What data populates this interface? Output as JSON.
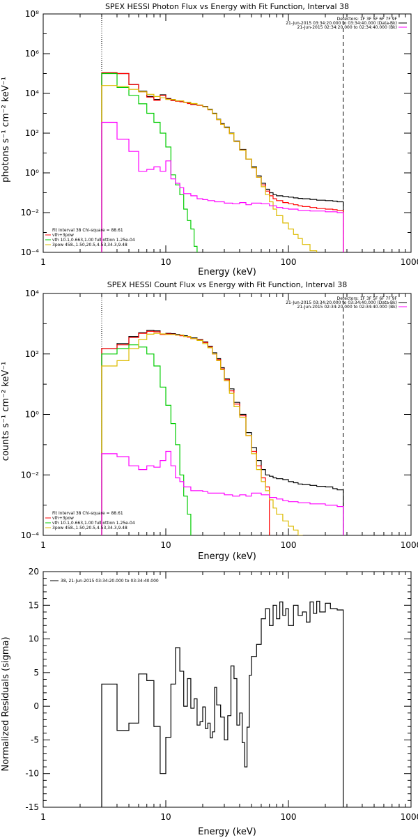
{
  "chart_data": [
    {
      "type": "line",
      "title": "SPEX HESSI Photon Flux vs Energy with Fit Function, Interval 38",
      "xlabel": "Energy (keV)",
      "ylabel": "photons s⁻¹ cm⁻² keV⁻¹",
      "xscale": "log",
      "yscale": "log",
      "xlim": [
        1,
        1000
      ],
      "ylim": [
        0.0001,
        100000000
      ],
      "xticks": [
        1,
        10,
        100,
        1000
      ],
      "xticklabels": [
        "1",
        "10",
        "100",
        "1000"
      ],
      "yticks": [
        0.0001,
        0.01,
        1,
        100,
        10000,
        1000000,
        100000000
      ],
      "yticklabels": [
        "10⁻⁴",
        "10⁻²",
        "10⁰",
        "10²",
        "10⁴",
        "10⁶",
        "10⁸"
      ],
      "vlines": [
        {
          "x": 3.0,
          "style": "dotted"
        },
        {
          "x": 280,
          "style": "dashed"
        }
      ],
      "legend_top_right": [
        "Detectors: 1F 3F 5F 6F 7F 9F",
        "21-Jun-2015 03:34:20.000 to 03:34:40.000 (Data-Bk)",
        "21-Jun-2015 02:34:20.000 to 02:34:40.000 (Bk)"
      ],
      "legend_bottom_left": [
        "Fit Interval 38   Chi-square = 88.61",
        "vth+3pow",
        "vth 10.1,0.663,1.00  full ottion 1.25e-04",
        "3pow 458.,1.50,20.5,4.53,34.3,9.48"
      ],
      "legend_colors": [
        "#000000",
        "#ff00ff",
        "#000000",
        "#ff0000",
        "#00cc00",
        "#ddbb00"
      ],
      "series": [
        {
          "name": "Data-Bk",
          "color": "#000000",
          "x": [
            3.0,
            4.0,
            5.0,
            6.0,
            7.0,
            8.0,
            9.0,
            10,
            11,
            12,
            13,
            14,
            15,
            16,
            18,
            20,
            22,
            24,
            26,
            28,
            30,
            33,
            36,
            40,
            45,
            50,
            55,
            60,
            65,
            70,
            75,
            80,
            90,
            100,
            110,
            120,
            130,
            150,
            170,
            200,
            230,
            250,
            280
          ],
          "y": [
            110000,
            100000,
            28000,
            13000,
            7000,
            5000,
            8500,
            5500,
            4600,
            4200,
            3900,
            3600,
            3200,
            2800,
            2600,
            2200,
            1600,
            1000,
            500,
            300,
            200,
            100,
            40,
            15,
            5,
            2,
            0.7,
            0.3,
            0.15,
            0.1,
            0.08,
            0.07,
            0.065,
            0.06,
            0.055,
            0.052,
            0.05,
            0.046,
            0.042,
            0.04,
            0.038,
            0.035,
            0.035
          ]
        },
        {
          "name": "vth+3pow",
          "color": "#ff0000",
          "x": [
            3.0,
            4.0,
            5.0,
            6.0,
            7.0,
            8.0,
            9.0,
            10,
            11,
            12,
            13,
            14,
            15,
            16,
            18,
            20,
            22,
            24,
            26,
            28,
            30,
            33,
            36,
            40,
            45,
            50,
            55,
            60,
            65,
            70,
            75,
            80,
            90,
            100,
            110,
            120,
            130,
            150,
            170,
            200,
            230,
            250,
            280
          ],
          "y": [
            110000,
            100000,
            28000,
            12000,
            6500,
            4500,
            8000,
            5200,
            4400,
            4000,
            3800,
            3500,
            3100,
            2700,
            2500,
            2100,
            1500,
            950,
            480,
            280,
            190,
            95,
            38,
            14,
            5,
            1.8,
            0.6,
            0.25,
            0.12,
            0.07,
            0.05,
            0.04,
            0.032,
            0.028,
            0.025,
            0.022,
            0.02,
            0.018,
            0.016,
            0.015,
            0.014,
            0.013,
            0.012
          ]
        },
        {
          "name": "vth",
          "color": "#00cc00",
          "x": [
            3.0,
            4.0,
            5.0,
            6.0,
            7.0,
            8.0,
            9.0,
            10,
            11,
            12,
            13,
            14,
            15,
            16,
            17,
            18
          ],
          "y": [
            100000,
            20000,
            8000,
            3000,
            1000,
            350,
            100,
            20,
            0.8,
            0.25,
            0.08,
            0.015,
            0.004,
            0.0015,
            0.0002,
            0.0001
          ]
        },
        {
          "name": "3pow (thick)",
          "color": "#ddbb00",
          "x": [
            3.0,
            4.0,
            5.0,
            6.0,
            7.0,
            8.0,
            9.0,
            10,
            12,
            14,
            16,
            18,
            20,
            22,
            24,
            26,
            28,
            30,
            33,
            36,
            40,
            45,
            50,
            55,
            60,
            65,
            70,
            75,
            80,
            90,
            100,
            110,
            120,
            130,
            150,
            170
          ],
          "y": [
            25000,
            22000,
            16000,
            12000,
            9000,
            7000,
            6000,
            5000,
            4200,
            3600,
            3100,
            2600,
            2100,
            1500,
            950,
            480,
            280,
            190,
            95,
            38,
            14,
            5,
            1.8,
            0.6,
            0.2,
            0.08,
            0.035,
            0.015,
            0.007,
            0.003,
            0.0015,
            0.0008,
            0.0005,
            0.00025,
            0.00012,
            0.0001
          ]
        },
        {
          "name": "3pow (thin)",
          "color": "#ff00ff",
          "x": [
            3.0,
            4.0,
            5.0,
            6.0,
            7.0,
            8.0,
            9.0,
            10,
            11,
            12,
            13,
            14,
            16,
            18,
            20,
            22,
            25,
            30,
            35,
            40,
            45,
            50,
            60,
            70,
            80,
            90,
            100,
            120,
            150,
            200,
            250,
            280
          ],
          "y": [
            350,
            50,
            12,
            1.2,
            1.5,
            2.0,
            1.2,
            4.0,
            0.5,
            0.3,
            0.18,
            0.09,
            0.07,
            0.05,
            0.045,
            0.04,
            0.035,
            0.03,
            0.028,
            0.032,
            0.025,
            0.03,
            0.028,
            0.022,
            0.018,
            0.016,
            0.015,
            0.013,
            0.012,
            0.011,
            0.01,
            0.009
          ]
        }
      ]
    },
    {
      "type": "line",
      "title": "SPEX HESSI Count Flux vs Energy with Fit Function, Interval 38",
      "xlabel": "Energy (keV)",
      "ylabel": "counts s⁻¹ cm⁻² keV⁻¹",
      "xscale": "log",
      "yscale": "log",
      "xlim": [
        1,
        1000
      ],
      "ylim": [
        0.0001,
        10000
      ],
      "xticks": [
        1,
        10,
        100,
        1000
      ],
      "xticklabels": [
        "1",
        "10",
        "100",
        "1000"
      ],
      "yticks": [
        0.0001,
        0.01,
        1,
        100,
        10000
      ],
      "yticklabels": [
        "10⁻⁴",
        "10⁻²",
        "10⁰",
        "10²",
        "10⁴"
      ],
      "vlines": [
        {
          "x": 3.0,
          "style": "dotted"
        },
        {
          "x": 280,
          "style": "dashed"
        }
      ],
      "legend_top_right": [
        "Detectors: 1F 3F 5F 6F 7F 9F",
        "21-Jun-2015 03:34:20.000 to 03:34:40.000 (Data-Bk)",
        "21-Jun-2015 02:34:20.000 to 02:34:40.000 (Bk)"
      ],
      "legend_bottom_left": [
        "Fit Interval 38   Chi-square = 88.61",
        "vth+3pow",
        "vth 10.1,0.663,1.00  full ottion 1.25e-04",
        "3pow 458.,1.50,20.5,4.53,34.3,9.48"
      ],
      "legend_colors": [
        "#000000",
        "#ff00ff",
        "#000000",
        "#ff0000",
        "#00cc00",
        "#ddbb00"
      ],
      "series": [
        {
          "name": "Data-Bk",
          "color": "#000000",
          "x": [
            3.0,
            4.0,
            5.0,
            6.0,
            7.0,
            8.0,
            9.0,
            10,
            11,
            12,
            13,
            14,
            15,
            16,
            18,
            20,
            22,
            24,
            26,
            28,
            30,
            33,
            36,
            40,
            45,
            50,
            55,
            60,
            65,
            70,
            75,
            80,
            90,
            100,
            110,
            120,
            130,
            150,
            170,
            200,
            230,
            250,
            280
          ],
          "y": [
            150,
            220,
            380,
            500,
            600,
            580,
            450,
            480,
            470,
            440,
            420,
            400,
            380,
            340,
            300,
            250,
            180,
            110,
            70,
            35,
            15,
            7,
            2.5,
            1.0,
            0.25,
            0.08,
            0.03,
            0.015,
            0.01,
            0.009,
            0.008,
            0.0075,
            0.007,
            0.006,
            0.0055,
            0.005,
            0.0048,
            0.0045,
            0.0042,
            0.004,
            0.0035,
            0.0032,
            0.003
          ]
        },
        {
          "name": "vth+3pow",
          "color": "#ff0000",
          "x": [
            3.0,
            4.0,
            5.0,
            6.0,
            7.0,
            8.0,
            9.0,
            10,
            11,
            12,
            13,
            14,
            15,
            16,
            18,
            20,
            22,
            24,
            26,
            28,
            30,
            33,
            36,
            40,
            45,
            50,
            55,
            60,
            65,
            70
          ],
          "y": [
            150,
            200,
            350,
            480,
            560,
            540,
            440,
            460,
            450,
            420,
            400,
            380,
            360,
            320,
            290,
            240,
            170,
            100,
            65,
            32,
            14,
            6,
            2.2,
            0.9,
            0.2,
            0.06,
            0.02,
            0.008,
            0.004,
            0.002
          ]
        },
        {
          "name": "vth",
          "color": "#00cc00",
          "x": [
            3.0,
            4.0,
            5.0,
            6.0,
            7.0,
            8.0,
            9.0,
            10,
            11,
            12,
            13,
            14,
            15,
            16
          ],
          "y": [
            100,
            150,
            200,
            170,
            100,
            40,
            8,
            2,
            0.5,
            0.1,
            0.01,
            0.002,
            0.0005,
            0.0001
          ]
        },
        {
          "name": "3pow (thick)",
          "color": "#ddbb00",
          "x": [
            3.0,
            4.0,
            5.0,
            6.0,
            7.0,
            8.0,
            9.0,
            10,
            12,
            14,
            16,
            18,
            20,
            22,
            24,
            26,
            28,
            30,
            33,
            36,
            40,
            45,
            50,
            55,
            60,
            65,
            70,
            75,
            80,
            90,
            100,
            110,
            120,
            130
          ],
          "y": [
            40,
            60,
            150,
            300,
            450,
            480,
            460,
            440,
            420,
            380,
            320,
            280,
            220,
            160,
            100,
            60,
            30,
            13,
            5,
            1.8,
            0.8,
            0.2,
            0.05,
            0.015,
            0.006,
            0.003,
            0.0015,
            0.0008,
            0.0005,
            0.0003,
            0.0002,
            0.00015,
            0.0001,
            0.0001
          ]
        },
        {
          "name": "3pow (thin)",
          "color": "#ff00ff",
          "x": [
            3.0,
            4.0,
            5.0,
            6.0,
            7.0,
            8.0,
            9.0,
            10,
            11,
            12,
            13,
            14,
            16,
            18,
            20,
            22,
            25,
            30,
            35,
            40,
            45,
            50,
            60,
            70,
            80,
            90,
            100,
            120,
            150,
            200,
            250,
            280
          ],
          "y": [
            0.05,
            0.04,
            0.02,
            0.015,
            0.02,
            0.018,
            0.03,
            0.06,
            0.02,
            0.008,
            0.006,
            0.004,
            0.003,
            0.003,
            0.0028,
            0.0025,
            0.0025,
            0.0022,
            0.002,
            0.0022,
            0.002,
            0.0025,
            0.0022,
            0.0018,
            0.0016,
            0.0014,
            0.0013,
            0.0012,
            0.0011,
            0.001,
            0.0009,
            0.0009
          ]
        }
      ]
    },
    {
      "type": "line",
      "title": "",
      "xlabel": "Energy (keV)",
      "ylabel": "Normalized Residuals (sigma)",
      "xscale": "log",
      "yscale": "linear",
      "xlim": [
        1,
        1000
      ],
      "ylim": [
        -15,
        20
      ],
      "xticks": [
        1,
        10,
        100,
        1000
      ],
      "xticklabels": [
        "1",
        "10",
        "100",
        "1000"
      ],
      "yticks": [
        -15,
        -10,
        -5,
        0,
        5,
        10,
        15,
        20
      ],
      "yticklabels": [
        "-15",
        "-10",
        "-5",
        "0",
        "5",
        "10",
        "15",
        "20"
      ],
      "legend_top_left": "38, 21-Jun-2015 03:34:20.000 to 03:34:40.000",
      "series": [
        {
          "name": "38, 21-Jun-2015 03:34:20.000 to 03:34:40.000",
          "color": "#000000",
          "edges": [
            3.0,
            4.0,
            5.0,
            6.0,
            7.0,
            8.0,
            9.0,
            10,
            11,
            12,
            13,
            14,
            15,
            16,
            17,
            18,
            19,
            20,
            21,
            22,
            23,
            24,
            25,
            26,
            28,
            30,
            32,
            34,
            36,
            38,
            40,
            42,
            44,
            46,
            48,
            50,
            55,
            60,
            65,
            70,
            75,
            80,
            85,
            90,
            95,
            100,
            110,
            120,
            130,
            140,
            150,
            160,
            170,
            180,
            200,
            220,
            250,
            280
          ],
          "values": [
            3.3,
            -3.6,
            -2.5,
            4.8,
            3.8,
            -3.0,
            -10.0,
            -4.6,
            3.3,
            8.7,
            5.2,
            0.0,
            4.1,
            -0.3,
            1.1,
            -2.8,
            -2.3,
            -0.1,
            -3.3,
            -2.5,
            -4.7,
            -3.8,
            2.8,
            0.2,
            -1.6,
            -5.0,
            -1.4,
            6.0,
            4.1,
            -2.8,
            -1.0,
            -5.4,
            -9.0,
            -3.1,
            4.6,
            7.4,
            9.2,
            13.0,
            14.5,
            12.0,
            15.0,
            13.0,
            15.5,
            13.5,
            14.5,
            12.0,
            15.0,
            13.5,
            14.0,
            12.5,
            15.5,
            13.8,
            15.6,
            14.0,
            15.3,
            14.5,
            14.3
          ]
        }
      ]
    }
  ]
}
